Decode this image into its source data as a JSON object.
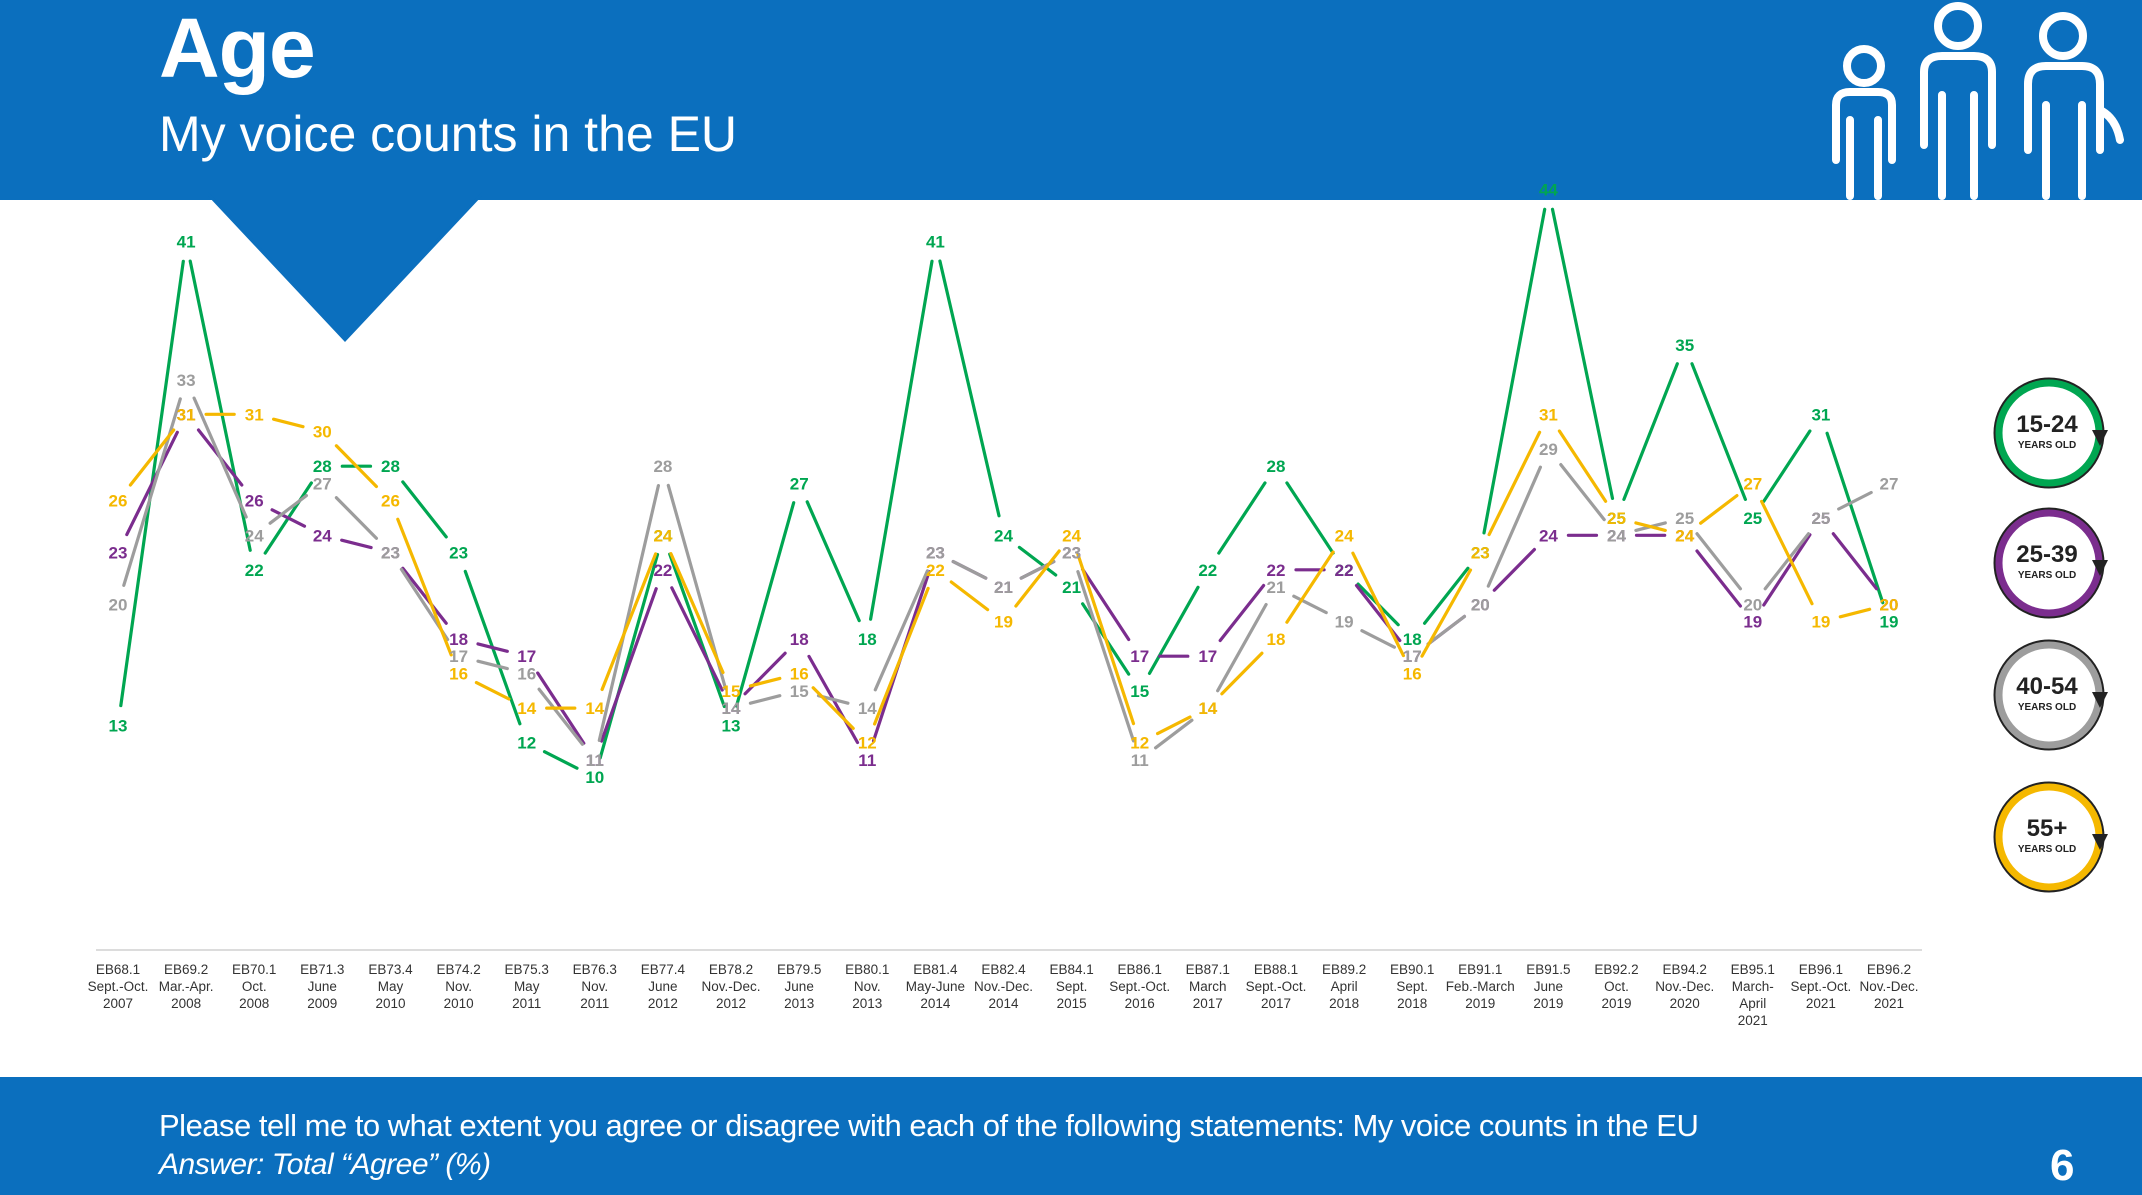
{
  "header": {
    "title": "Age",
    "subtitle": "My voice counts in the EU"
  },
  "footer": {
    "question": "Please tell me to what extent you agree or disagree with each of the following statements: My voice counts in the EU",
    "answer": "Answer: Total “Agree” (%)",
    "page_number": "6"
  },
  "legend": [
    {
      "label": "15-24",
      "sub": "YEARS OLD",
      "color": "#00a651"
    },
    {
      "label": "25-39",
      "sub": "YEARS OLD",
      "color": "#7b2d8e"
    },
    {
      "label": "40-54",
      "sub": "YEARS OLD",
      "color": "#9d9d9d"
    },
    {
      "label": "55+",
      "sub": "YEARS OLD",
      "color": "#f5b800"
    }
  ],
  "chart_data": {
    "type": "line",
    "x": [
      [
        "EB68.1",
        "Sept.-Oct.",
        "2007"
      ],
      [
        "EB69.2",
        "Mar.-Apr.",
        "2008"
      ],
      [
        "EB70.1",
        "Oct.",
        "2008"
      ],
      [
        "EB71.3",
        "June",
        "2009"
      ],
      [
        "EB73.4",
        "May",
        "2010"
      ],
      [
        "EB74.2",
        "Nov.",
        "2010"
      ],
      [
        "EB75.3",
        "May",
        "2011"
      ],
      [
        "EB76.3",
        "Nov.",
        "2011"
      ],
      [
        "EB77.4",
        "June",
        "2012"
      ],
      [
        "EB78.2",
        "Nov.-Dec.",
        "2012"
      ],
      [
        "EB79.5",
        "June",
        "2013"
      ],
      [
        "EB80.1",
        "Nov.",
        "2013"
      ],
      [
        "EB81.4",
        "May-June",
        "2014"
      ],
      [
        "EB82.4",
        "Nov.-Dec.",
        "2014"
      ],
      [
        "EB84.1",
        "Sept.",
        "2015"
      ],
      [
        "EB86.1",
        "Sept.-Oct.",
        "2016"
      ],
      [
        "EB87.1",
        "March",
        "2017"
      ],
      [
        "EB88.1",
        "Sept.-Oct.",
        "2017"
      ],
      [
        "EB89.2",
        "April",
        "2018"
      ],
      [
        "EB90.1",
        "Sept.",
        "2018"
      ],
      [
        "EB91.1",
        "Feb.-March",
        "2019"
      ],
      [
        "EB91.5",
        "June",
        "2019"
      ],
      [
        "EB92.2",
        "Oct.",
        "2019"
      ],
      [
        "EB94.2",
        "Nov.-Dec.",
        "2020"
      ],
      [
        "EB95.1",
        "March-",
        "April",
        "2021"
      ],
      [
        "EB96.1",
        "Sept.-Oct.",
        "2021"
      ],
      [
        "EB96.2",
        "Nov.-Dec.",
        "2021"
      ]
    ],
    "series": [
      {
        "name": "15-24",
        "color": "#00a651",
        "values": [
          13,
          41,
          22,
          28,
          28,
          23,
          12,
          10,
          24,
          13,
          27,
          18,
          41,
          24,
          21,
          15,
          22,
          28,
          22,
          18,
          23,
          44,
          25,
          35,
          25,
          31,
          19
        ]
      },
      {
        "name": "25-39",
        "color": "#7b2d8e",
        "values": [
          23,
          31,
          26,
          24,
          23,
          18,
          17,
          11,
          22,
          14,
          18,
          11,
          23,
          21,
          23,
          17,
          17,
          22,
          22,
          17,
          20,
          24,
          24,
          24,
          19,
          25,
          20
        ]
      },
      {
        "name": "40-54",
        "color": "#9d9d9d",
        "values": [
          20,
          33,
          24,
          27,
          23,
          17,
          16,
          11,
          28,
          14,
          15,
          14,
          23,
          21,
          23,
          11,
          14,
          21,
          19,
          17,
          20,
          29,
          24,
          25,
          20,
          25,
          27
        ]
      },
      {
        "name": "55+",
        "color": "#f5b800",
        "values": [
          26,
          31,
          31,
          30,
          26,
          16,
          14,
          14,
          24,
          15,
          16,
          12,
          22,
          19,
          24,
          12,
          14,
          18,
          24,
          16,
          23,
          31,
          25,
          24,
          27,
          19,
          20
        ]
      }
    ],
    "ylim": [
      0,
      60
    ],
    "grid": false,
    "legend_position": "right"
  }
}
